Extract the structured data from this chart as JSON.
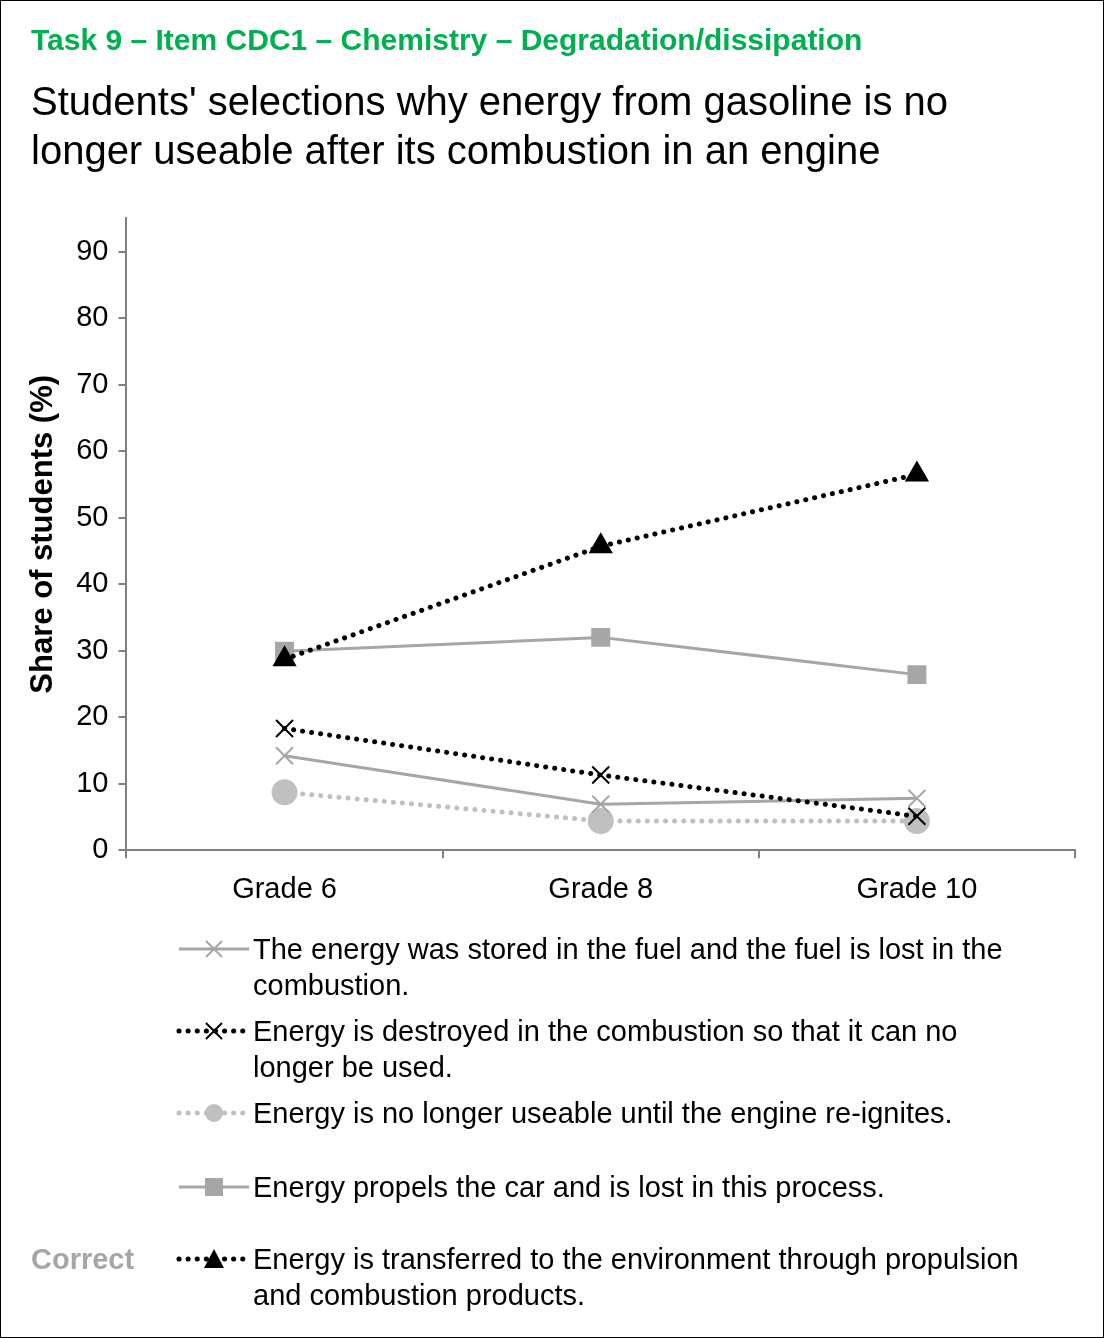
{
  "chart_data": {
    "type": "line",
    "title": "Task 9 – Item CDC1 – Chemistry – Degradation/dissipation",
    "subtitle": "Students' selections why energy from gasoline is no longer  useable after its combustion in an engine",
    "ylabel": "Share of students (%)",
    "categories": [
      "Grade 6",
      "Grade 8",
      "Grade 10"
    ],
    "series": [
      {
        "name": "The energy was stored in the fuel and the fuel is lost in the combustion.",
        "color": "#a6a6a6",
        "marker": "cross",
        "line_style": "solid",
        "values": [
          14.2,
          6.9,
          7.8
        ]
      },
      {
        "name": "Energy is destroyed in the combustion so that it can no longer be used.",
        "color": "#000000",
        "marker": "cross",
        "line_style": "dotted",
        "values": [
          18.3,
          11.3,
          5.1
        ]
      },
      {
        "name": "Energy is no longer useable until the engine re-ignites.",
        "color": "#c0c0c0",
        "marker": "circle",
        "line_style": "dotted",
        "values": [
          8.7,
          4.4,
          4.4
        ]
      },
      {
        "name": "Energy propels the car and is lost in this process.",
        "color": "#a6a6a6",
        "marker": "square",
        "line_style": "solid",
        "values": [
          29.9,
          32.0,
          26.4
        ]
      },
      {
        "name": "Energy is transferred to the environment through propulsion and combustion products.",
        "color": "#000000",
        "marker": "triangle",
        "line_style": "dotted",
        "values": [
          28.7,
          45.7,
          56.5
        ]
      }
    ],
    "annotations": [
      "Correct"
    ],
    "ylim": [
      0,
      95
    ],
    "yticks": [
      0,
      10,
      20,
      30,
      40,
      50,
      60,
      70,
      80,
      90
    ],
    "grid": false,
    "legend": "bottom"
  }
}
